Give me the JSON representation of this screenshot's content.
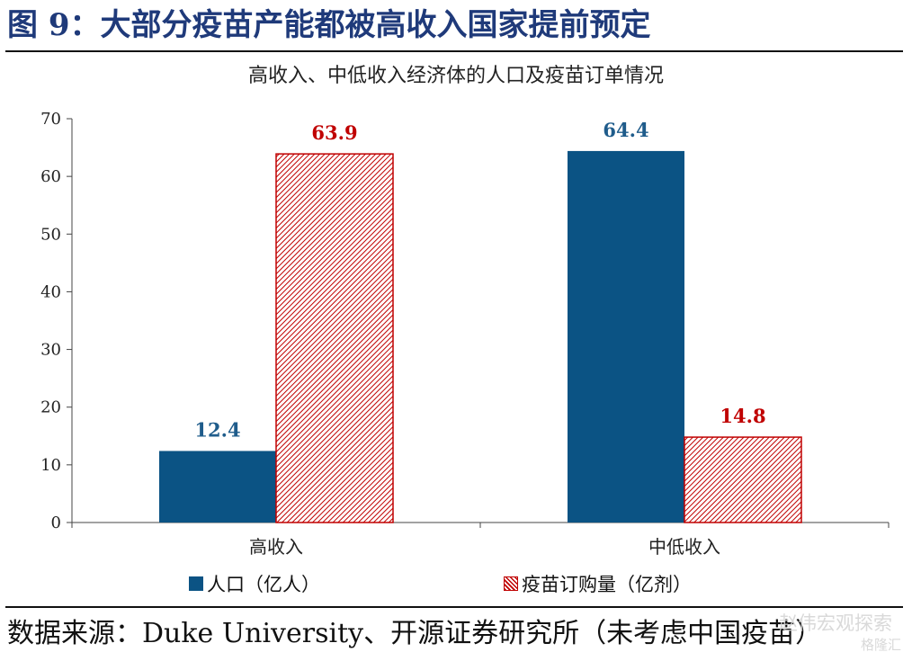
{
  "figure_title": "图 9：大部分疫苗产能都被高收入国家提前预定",
  "source": "数据来源：Duke University、开源证券研究所（未考虑中国疫苗）",
  "watermark": {
    "line1": "赵伟宏观探索",
    "line2": "格隆汇"
  },
  "colors": {
    "population": "#0B5384",
    "vaccine": "#C00000",
    "value_label_population": "#1F5C8B",
    "value_label_vaccine": "#C00000"
  },
  "chart_data": {
    "type": "bar",
    "title": "高收入、中低收入经济体的人口及疫苗订单情况",
    "categories": [
      "高收入",
      "中低收入"
    ],
    "series": [
      {
        "name": "人口（亿人）",
        "values": [
          12.4,
          64.4
        ],
        "fill": "solid"
      },
      {
        "name": "疫苗订购量（亿剂）",
        "values": [
          63.9,
          14.8
        ],
        "fill": "hatched"
      }
    ],
    "value_labels": [
      [
        "12.4",
        "64.4"
      ],
      [
        "63.9",
        "14.8"
      ]
    ],
    "ylim": [
      0,
      70
    ],
    "yticks": [
      0,
      10,
      20,
      30,
      40,
      50,
      60,
      70
    ],
    "grid": false,
    "legend_position": "bottom"
  }
}
